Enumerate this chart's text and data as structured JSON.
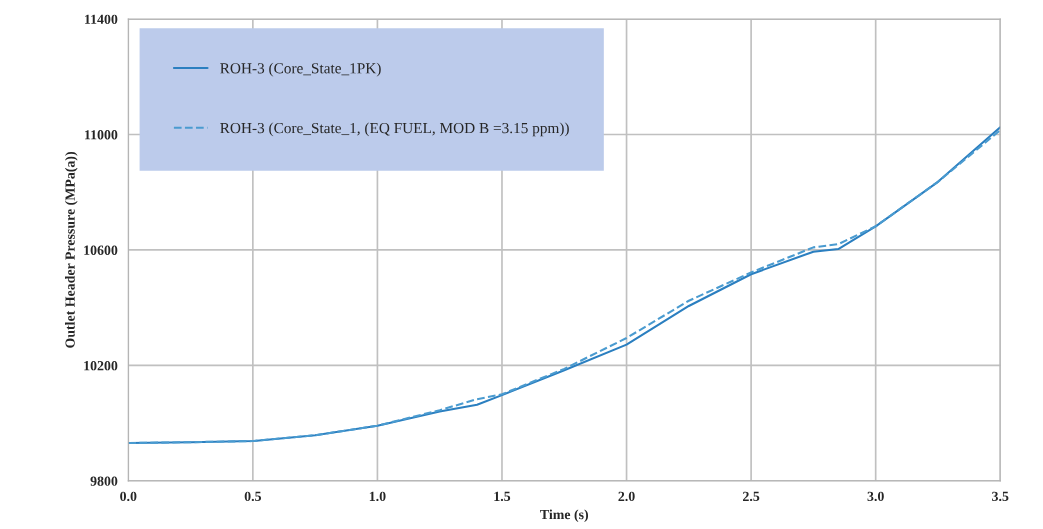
{
  "chart_data": {
    "type": "line",
    "xlabel": "Time (s)",
    "ylabel": "Outlet Header Pressure (MPa(a))",
    "xlim": [
      0.0,
      3.5
    ],
    "xticks": [
      {
        "value": 0,
        "label": "0.0"
      },
      {
        "value": 0.5,
        "label": "0.5"
      },
      {
        "value": 1,
        "label": "1.0"
      },
      {
        "value": 1.5,
        "label": "1.5"
      },
      {
        "value": 2,
        "label": "2.0"
      },
      {
        "value": 2.5,
        "label": "2.5"
      },
      {
        "value": 3,
        "label": "3.0"
      },
      {
        "value": 3.5,
        "label": "3.5"
      }
    ],
    "ylim": [
      9800,
      11400
    ],
    "yticks": [
      9800,
      10200,
      10600,
      11000,
      11400
    ],
    "x": [
      0,
      0.25,
      0.5,
      0.75,
      1.0,
      1.25,
      1.4,
      1.5,
      1.75,
      2.0,
      2.25,
      2.5,
      2.75,
      2.85,
      3.0,
      3.25,
      3.5
    ],
    "series": [
      {
        "name": "ROH-3 (Core_State_1PK)",
        "color": "#2b7fc0",
        "line_style": "solid",
        "values": [
          9931,
          9934,
          9938,
          9958,
          9991,
          10040,
          10064,
          10097,
          10183,
          10272,
          10406,
          10516,
          10594,
          10603,
          10682,
          10836,
          11025
        ]
      },
      {
        "name": "ROH-3 (Core_State_1, (EQ FUEL, MOD B =3.15 ppm))",
        "color": "#4a9bd0",
        "line_style": "dashed",
        "values": [
          9931,
          9934,
          9938,
          9958,
          9991,
          10045,
          10083,
          10100,
          10188,
          10295,
          10424,
          10522,
          10609,
          10620,
          10682,
          10836,
          11015
        ]
      }
    ],
    "grid": true,
    "legend": "top left"
  }
}
